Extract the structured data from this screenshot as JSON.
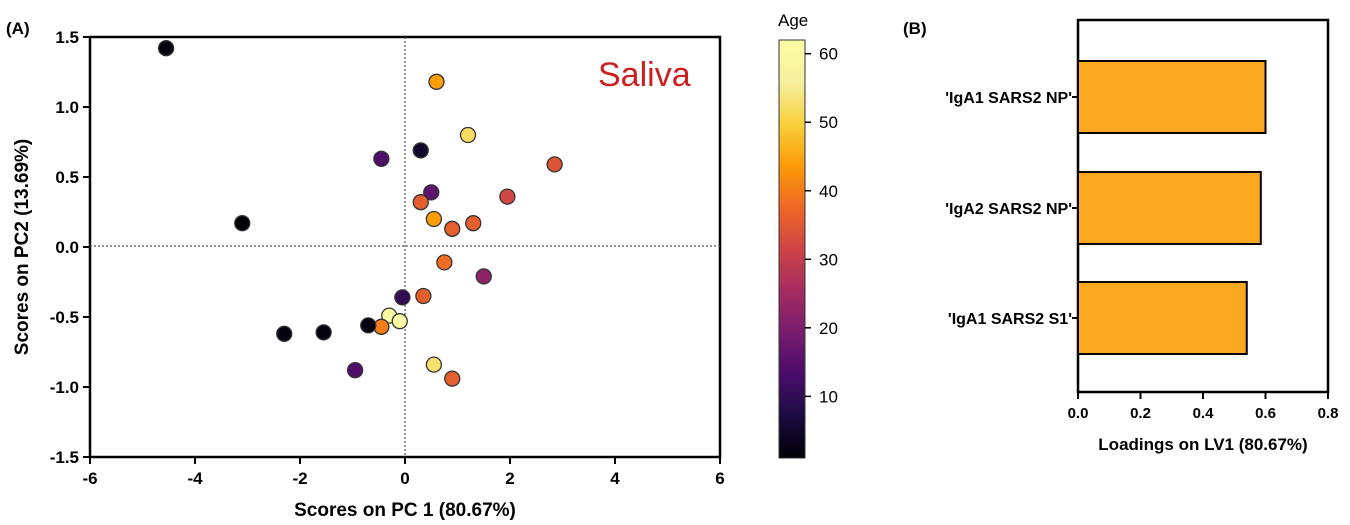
{
  "panel_a": {
    "label": "(A)",
    "annotation": "Saliva",
    "annotation_color": "#cc2020",
    "colorbar_title": "Age",
    "colorbar_ticks": [
      10,
      20,
      30,
      40,
      50,
      60
    ],
    "colorbar_range": [
      1,
      62
    ]
  },
  "panel_b": {
    "label": "(B)"
  },
  "chart_data": [
    {
      "type": "scatter",
      "xlabel": "Scores on PC 1 (80.67%)",
      "ylabel": "Scores on PC2 (13.69%)",
      "xlim": [
        -6,
        6
      ],
      "ylim": [
        -1.5,
        1.5
      ],
      "xticks": [
        -6,
        -4,
        -2,
        0,
        2,
        4,
        6
      ],
      "yticks": [
        -1.5,
        -1.0,
        -0.5,
        0.0,
        0.5,
        1.0,
        1.5
      ],
      "reference_lines": {
        "x": 0,
        "y": 0
      },
      "color_scale": "inferno",
      "color_variable": "Age",
      "points": [
        {
          "x": -4.55,
          "y": 1.42,
          "age": 2
        },
        {
          "x": 0.6,
          "y": 1.18,
          "age": 44
        },
        {
          "x": 1.2,
          "y": 0.8,
          "age": 52
        },
        {
          "x": -0.45,
          "y": 0.63,
          "age": 14
        },
        {
          "x": 0.3,
          "y": 0.69,
          "age": 5
        },
        {
          "x": 2.85,
          "y": 0.59,
          "age": 34
        },
        {
          "x": 0.5,
          "y": 0.39,
          "age": 16
        },
        {
          "x": 1.95,
          "y": 0.36,
          "age": 32
        },
        {
          "x": 0.3,
          "y": 0.32,
          "age": 36
        },
        {
          "x": 0.55,
          "y": 0.2,
          "age": 44
        },
        {
          "x": 0.9,
          "y": 0.13,
          "age": 36
        },
        {
          "x": 1.3,
          "y": 0.17,
          "age": 36
        },
        {
          "x": -3.1,
          "y": 0.17,
          "age": 1
        },
        {
          "x": 0.75,
          "y": -0.11,
          "age": 38
        },
        {
          "x": 1.5,
          "y": -0.21,
          "age": 22
        },
        {
          "x": -0.05,
          "y": -0.36,
          "age": 10
        },
        {
          "x": 0.35,
          "y": -0.35,
          "age": 36
        },
        {
          "x": -0.3,
          "y": -0.49,
          "age": 60
        },
        {
          "x": -0.1,
          "y": -0.53,
          "age": 62
        },
        {
          "x": -0.45,
          "y": -0.57,
          "age": 40
        },
        {
          "x": -0.7,
          "y": -0.56,
          "age": 2
        },
        {
          "x": -1.55,
          "y": -0.61,
          "age": 2
        },
        {
          "x": -2.3,
          "y": -0.62,
          "age": 2
        },
        {
          "x": 0.55,
          "y": -0.84,
          "age": 53
        },
        {
          "x": -0.95,
          "y": -0.88,
          "age": 14
        },
        {
          "x": 0.9,
          "y": -0.94,
          "age": 36
        }
      ]
    },
    {
      "type": "bar",
      "orientation": "horizontal",
      "categories": [
        "'IgA1 SARS2 NP'",
        "'IgA2 SARS2 NP'",
        "'IgA1 SARS2 S1'"
      ],
      "values": [
        0.6,
        0.585,
        0.54
      ],
      "xlabel": "Loadings on LV1 (80.67%)",
      "xlim": [
        0.0,
        0.8
      ],
      "xticks": [
        "0.0",
        "0.2",
        "0.4",
        "0.6",
        "0.8"
      ],
      "bar_color": "#f9a820"
    }
  ]
}
